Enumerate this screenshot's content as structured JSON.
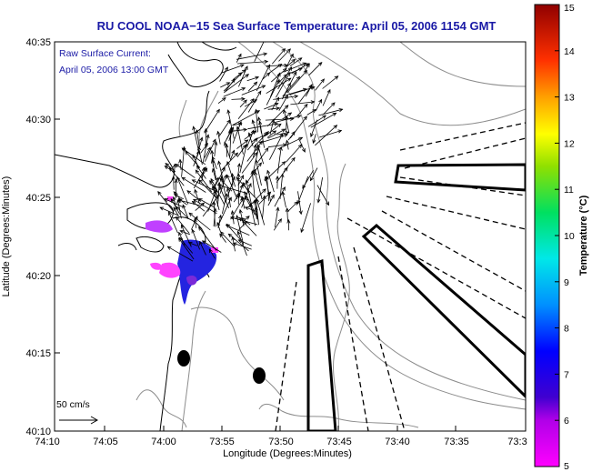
{
  "title": "RU COOL  NOAA−15  Sea Surface Temperature:  April 05, 2006 1154 GMT",
  "current_legend": {
    "line1": "Raw Surface Current:",
    "line2": "April 05, 2006 13:00 GMT",
    "scale_label": "50 cm/s"
  },
  "x_axis": {
    "label": "Longitude (Degrees:Minutes)",
    "ticks": [
      "74:10",
      "74:05",
      "74:00",
      "73:55",
      "73:50",
      "73:45",
      "73:40",
      "73:35",
      "73:3"
    ]
  },
  "y_axis": {
    "label": "Latitude (Degrees:Minutes)",
    "ticks": [
      "40:35",
      "40:30",
      "40:25",
      "40:20",
      "40:15",
      "40:10"
    ]
  },
  "colorbar": {
    "label": "Temperature (°C)",
    "ticks": [
      "15",
      "14",
      "13",
      "12",
      "11",
      "10",
      "9",
      "8",
      "7",
      "6",
      "5"
    ],
    "min": 5,
    "max": 15
  },
  "colors": {
    "title": "#1a1aa6",
    "sst_blue": "#2020e0",
    "sst_magenta": "#ff40ff"
  }
}
